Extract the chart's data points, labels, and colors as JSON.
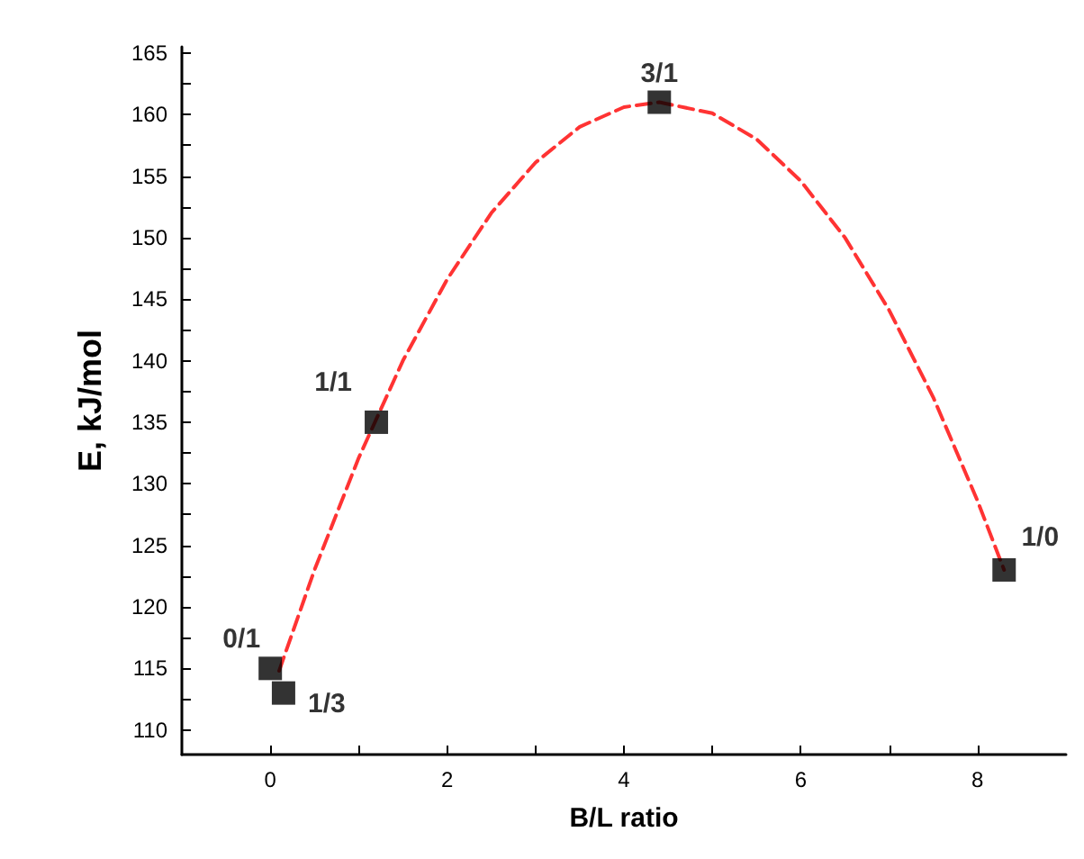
{
  "chart_data": {
    "type": "scatter",
    "xlabel": "B/L ratio",
    "ylabel": "E, kJ/mol",
    "xlim": [
      -1,
      9
    ],
    "xticks": [
      0,
      {
        "value": 1,
        "label": null
      },
      2,
      {
        "value": 3,
        "label": null
      },
      4,
      {
        "value": 5,
        "label": null
      },
      6,
      {
        "value": 7,
        "label": null
      },
      8
    ],
    "ylim": [
      108,
      165.5
    ],
    "yticks": [
      110,
      {
        "value": 112.5,
        "label": null
      },
      115,
      {
        "value": 117.5,
        "label": null
      },
      120,
      {
        "value": 122.5,
        "label": null
      },
      125,
      {
        "value": 127.5,
        "label": null
      },
      130,
      {
        "value": 132.5,
        "label": null
      },
      135,
      {
        "value": 137.5,
        "label": null
      },
      140,
      {
        "value": 142.5,
        "label": null
      },
      145,
      {
        "value": 147.5,
        "label": null
      },
      150,
      {
        "value": 152.5,
        "label": null
      },
      155,
      {
        "value": 157.5,
        "label": null
      },
      160,
      {
        "value": 162.5,
        "label": null
      },
      165
    ],
    "grid": false,
    "series": [
      {
        "color": "#000000",
        "marker": "square",
        "x": [
          0,
          0.15,
          1.2,
          4.4,
          8.3
        ],
        "values": [
          115,
          113,
          135,
          161,
          123
        ]
      },
      {
        "type": "line",
        "color": "#ff3333",
        "line_style": "dashed",
        "marker": "none",
        "x": [
          0.1,
          0.5,
          1,
          1.5,
          2,
          2.5,
          3,
          3.5,
          4,
          4.4,
          5,
          5.5,
          6,
          6.5,
          7,
          7.5,
          8,
          8.3
        ],
        "values": [
          114.8,
          123,
          132.1,
          140,
          146.6,
          152,
          156.1,
          159,
          160.6,
          161,
          160.1,
          158,
          154.6,
          150,
          144.1,
          137,
          128.6,
          123
        ]
      }
    ],
    "annotations": [
      {
        "text": "0/1",
        "x": 0,
        "y": 115
      },
      {
        "text": "1/3",
        "x": 0.15,
        "y": 113
      },
      {
        "text": "1/1",
        "x": 1.2,
        "y": 135
      },
      {
        "text": "3/1",
        "x": 4.4,
        "y": 161
      },
      {
        "text": "1/0",
        "x": 8.3,
        "y": 123
      }
    ]
  }
}
